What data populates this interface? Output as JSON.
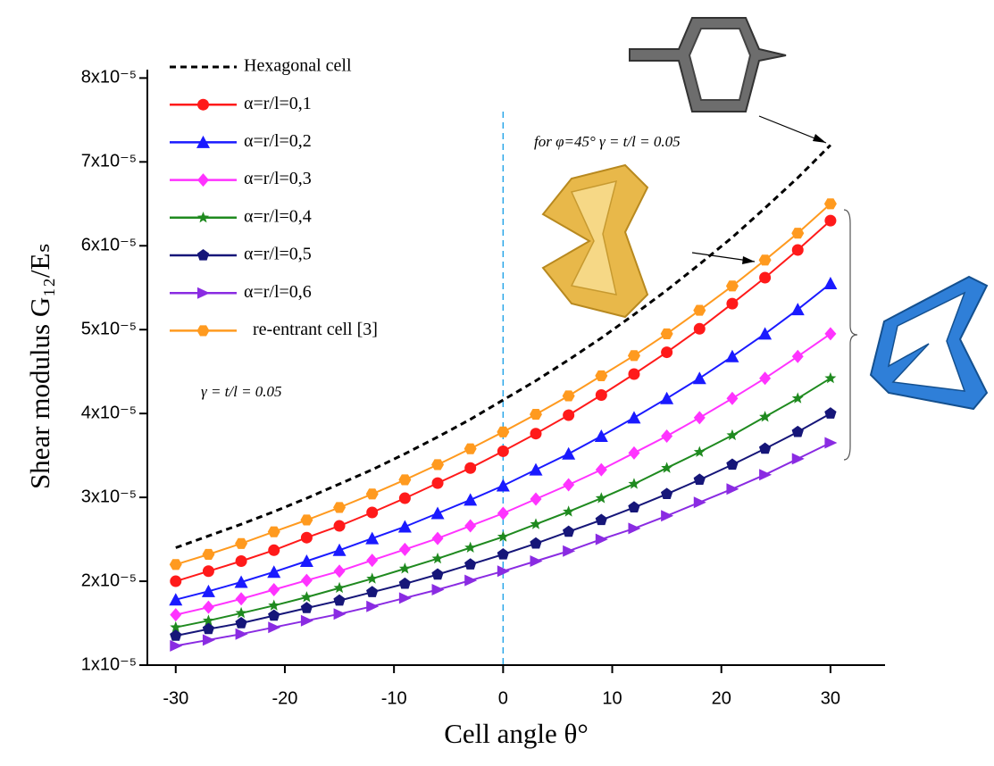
{
  "chart_data": {
    "type": "line",
    "x_label": "Cell angle θ°",
    "y_label": "Shear modulus G₁₂/Eₛ",
    "annotations": [
      "for  φ=45°  γ = t/l = 0.05",
      "γ = t/l = 0.05"
    ],
    "x": [
      -30,
      -27,
      -24,
      -21,
      -18,
      -15,
      -12,
      -9,
      -6,
      -3,
      0,
      3,
      6,
      9,
      12,
      15,
      18,
      21,
      24,
      27,
      30
    ],
    "xlim": [
      -32.6,
      35
    ],
    "xticks": [
      -30,
      -20,
      -10,
      0,
      10,
      20,
      30
    ],
    "ylim": [
      1e-05,
      8.1e-05
    ],
    "yticks": [
      {
        "value": 1e-05,
        "label": "1x10⁻⁵"
      },
      {
        "value": 2e-05,
        "label": "2x10⁻⁵"
      },
      {
        "value": 3e-05,
        "label": "3x10⁻⁵"
      },
      {
        "value": 4e-05,
        "label": "4x10⁻⁵"
      },
      {
        "value": 5e-05,
        "label": "5x10⁻⁵"
      },
      {
        "value": 6e-05,
        "label": "6x10⁻⁵"
      },
      {
        "value": 7e-05,
        "label": "7x10⁻⁵"
      },
      {
        "value": 8e-05,
        "label": "8x10⁻⁵"
      }
    ],
    "legend": "upper left",
    "series": [
      {
        "name": "Hexagonal cell",
        "color": "#000000",
        "line_style": "dashed",
        "marker": "none",
        "values": [
          2.4e-05,
          2.54e-05,
          2.68e-05,
          2.83e-05,
          2.99e-05,
          3.16e-05,
          3.33e-05,
          3.52e-05,
          3.72e-05,
          3.93e-05,
          4.16e-05,
          4.39e-05,
          4.64e-05,
          4.9e-05,
          5.18e-05,
          5.47e-05,
          5.78e-05,
          6.1e-05,
          6.45e-05,
          6.81e-05,
          7.2e-05
        ]
      },
      {
        "name": "α=r/l=0,1",
        "color": "#ff1a1a",
        "line_style": "solid",
        "marker": "circle",
        "values": [
          2e-05,
          2.12e-05,
          2.24e-05,
          2.37e-05,
          2.52e-05,
          2.66e-05,
          2.82e-05,
          2.99e-05,
          3.17e-05,
          3.35e-05,
          3.55e-05,
          3.76e-05,
          3.98e-05,
          4.22e-05,
          4.47e-05,
          4.73e-05,
          5.01e-05,
          5.31e-05,
          5.62e-05,
          5.95e-05,
          6.3e-05
        ]
      },
      {
        "name": "α=r/l=0,2",
        "color": "#1a1aff",
        "line_style": "solid",
        "marker": "triangle",
        "values": [
          1.78e-05,
          1.88e-05,
          1.99e-05,
          2.11e-05,
          2.24e-05,
          2.37e-05,
          2.51e-05,
          2.65e-05,
          2.81e-05,
          2.97e-05,
          3.14e-05,
          3.33e-05,
          3.52e-05,
          3.73e-05,
          3.95e-05,
          4.18e-05,
          4.42e-05,
          4.68e-05,
          4.95e-05,
          5.24e-05,
          5.55e-05
        ]
      },
      {
        "name": "α=r/l=0,3",
        "color": "#ff33ff",
        "line_style": "solid",
        "marker": "diamond",
        "values": [
          1.6e-05,
          1.69e-05,
          1.79e-05,
          1.9e-05,
          2.01e-05,
          2.12e-05,
          2.25e-05,
          2.38e-05,
          2.51e-05,
          2.66e-05,
          2.81e-05,
          2.98e-05,
          3.15e-05,
          3.33e-05,
          3.53e-05,
          3.73e-05,
          3.95e-05,
          4.18e-05,
          4.42e-05,
          4.68e-05,
          4.95e-05
        ]
      },
      {
        "name": "α=r/l=0,4",
        "color": "#1f8a1f",
        "line_style": "solid",
        "marker": "star",
        "values": [
          1.45e-05,
          1.53e-05,
          1.62e-05,
          1.71e-05,
          1.81e-05,
          1.92e-05,
          2.03e-05,
          2.15e-05,
          2.27e-05,
          2.4e-05,
          2.53e-05,
          2.68e-05,
          2.83e-05,
          2.99e-05,
          3.16e-05,
          3.35e-05,
          3.54e-05,
          3.74e-05,
          3.96e-05,
          4.18e-05,
          4.42e-05
        ]
      },
      {
        "name": "α=r/l=0,5",
        "color": "#161679",
        "line_style": "solid",
        "marker": "pentagon",
        "values": [
          1.35e-05,
          1.43e-05,
          1.5e-05,
          1.59e-05,
          1.68e-05,
          1.77e-05,
          1.87e-05,
          1.97e-05,
          2.08e-05,
          2.2e-05,
          2.32e-05,
          2.45e-05,
          2.59e-05,
          2.73e-05,
          2.88e-05,
          3.04e-05,
          3.21e-05,
          3.39e-05,
          3.58e-05,
          3.78e-05,
          4e-05
        ]
      },
      {
        "name": "α=r/l=0,6",
        "color": "#8a2be2",
        "line_style": "solid",
        "marker": "right-triangle",
        "values": [
          1.23e-05,
          1.3e-05,
          1.37e-05,
          1.45e-05,
          1.53e-05,
          1.61e-05,
          1.7e-05,
          1.8e-05,
          1.9e-05,
          2.01e-05,
          2.12e-05,
          2.24e-05,
          2.36e-05,
          2.5e-05,
          2.63e-05,
          2.78e-05,
          2.94e-05,
          3.1e-05,
          3.27e-05,
          3.46e-05,
          3.65e-05
        ]
      },
      {
        "name": "re-entrant cell [3]",
        "color": "#ff9a1f",
        "line_style": "solid",
        "marker": "hexagon",
        "values": [
          2.2e-05,
          2.32e-05,
          2.45e-05,
          2.59e-05,
          2.73e-05,
          2.88e-05,
          3.04e-05,
          3.21e-05,
          3.39e-05,
          3.58e-05,
          3.78e-05,
          3.99e-05,
          4.21e-05,
          4.45e-05,
          4.69e-05,
          4.95e-05,
          5.23e-05,
          5.52e-05,
          5.83e-05,
          6.15e-05,
          6.5e-05
        ]
      }
    ]
  }
}
